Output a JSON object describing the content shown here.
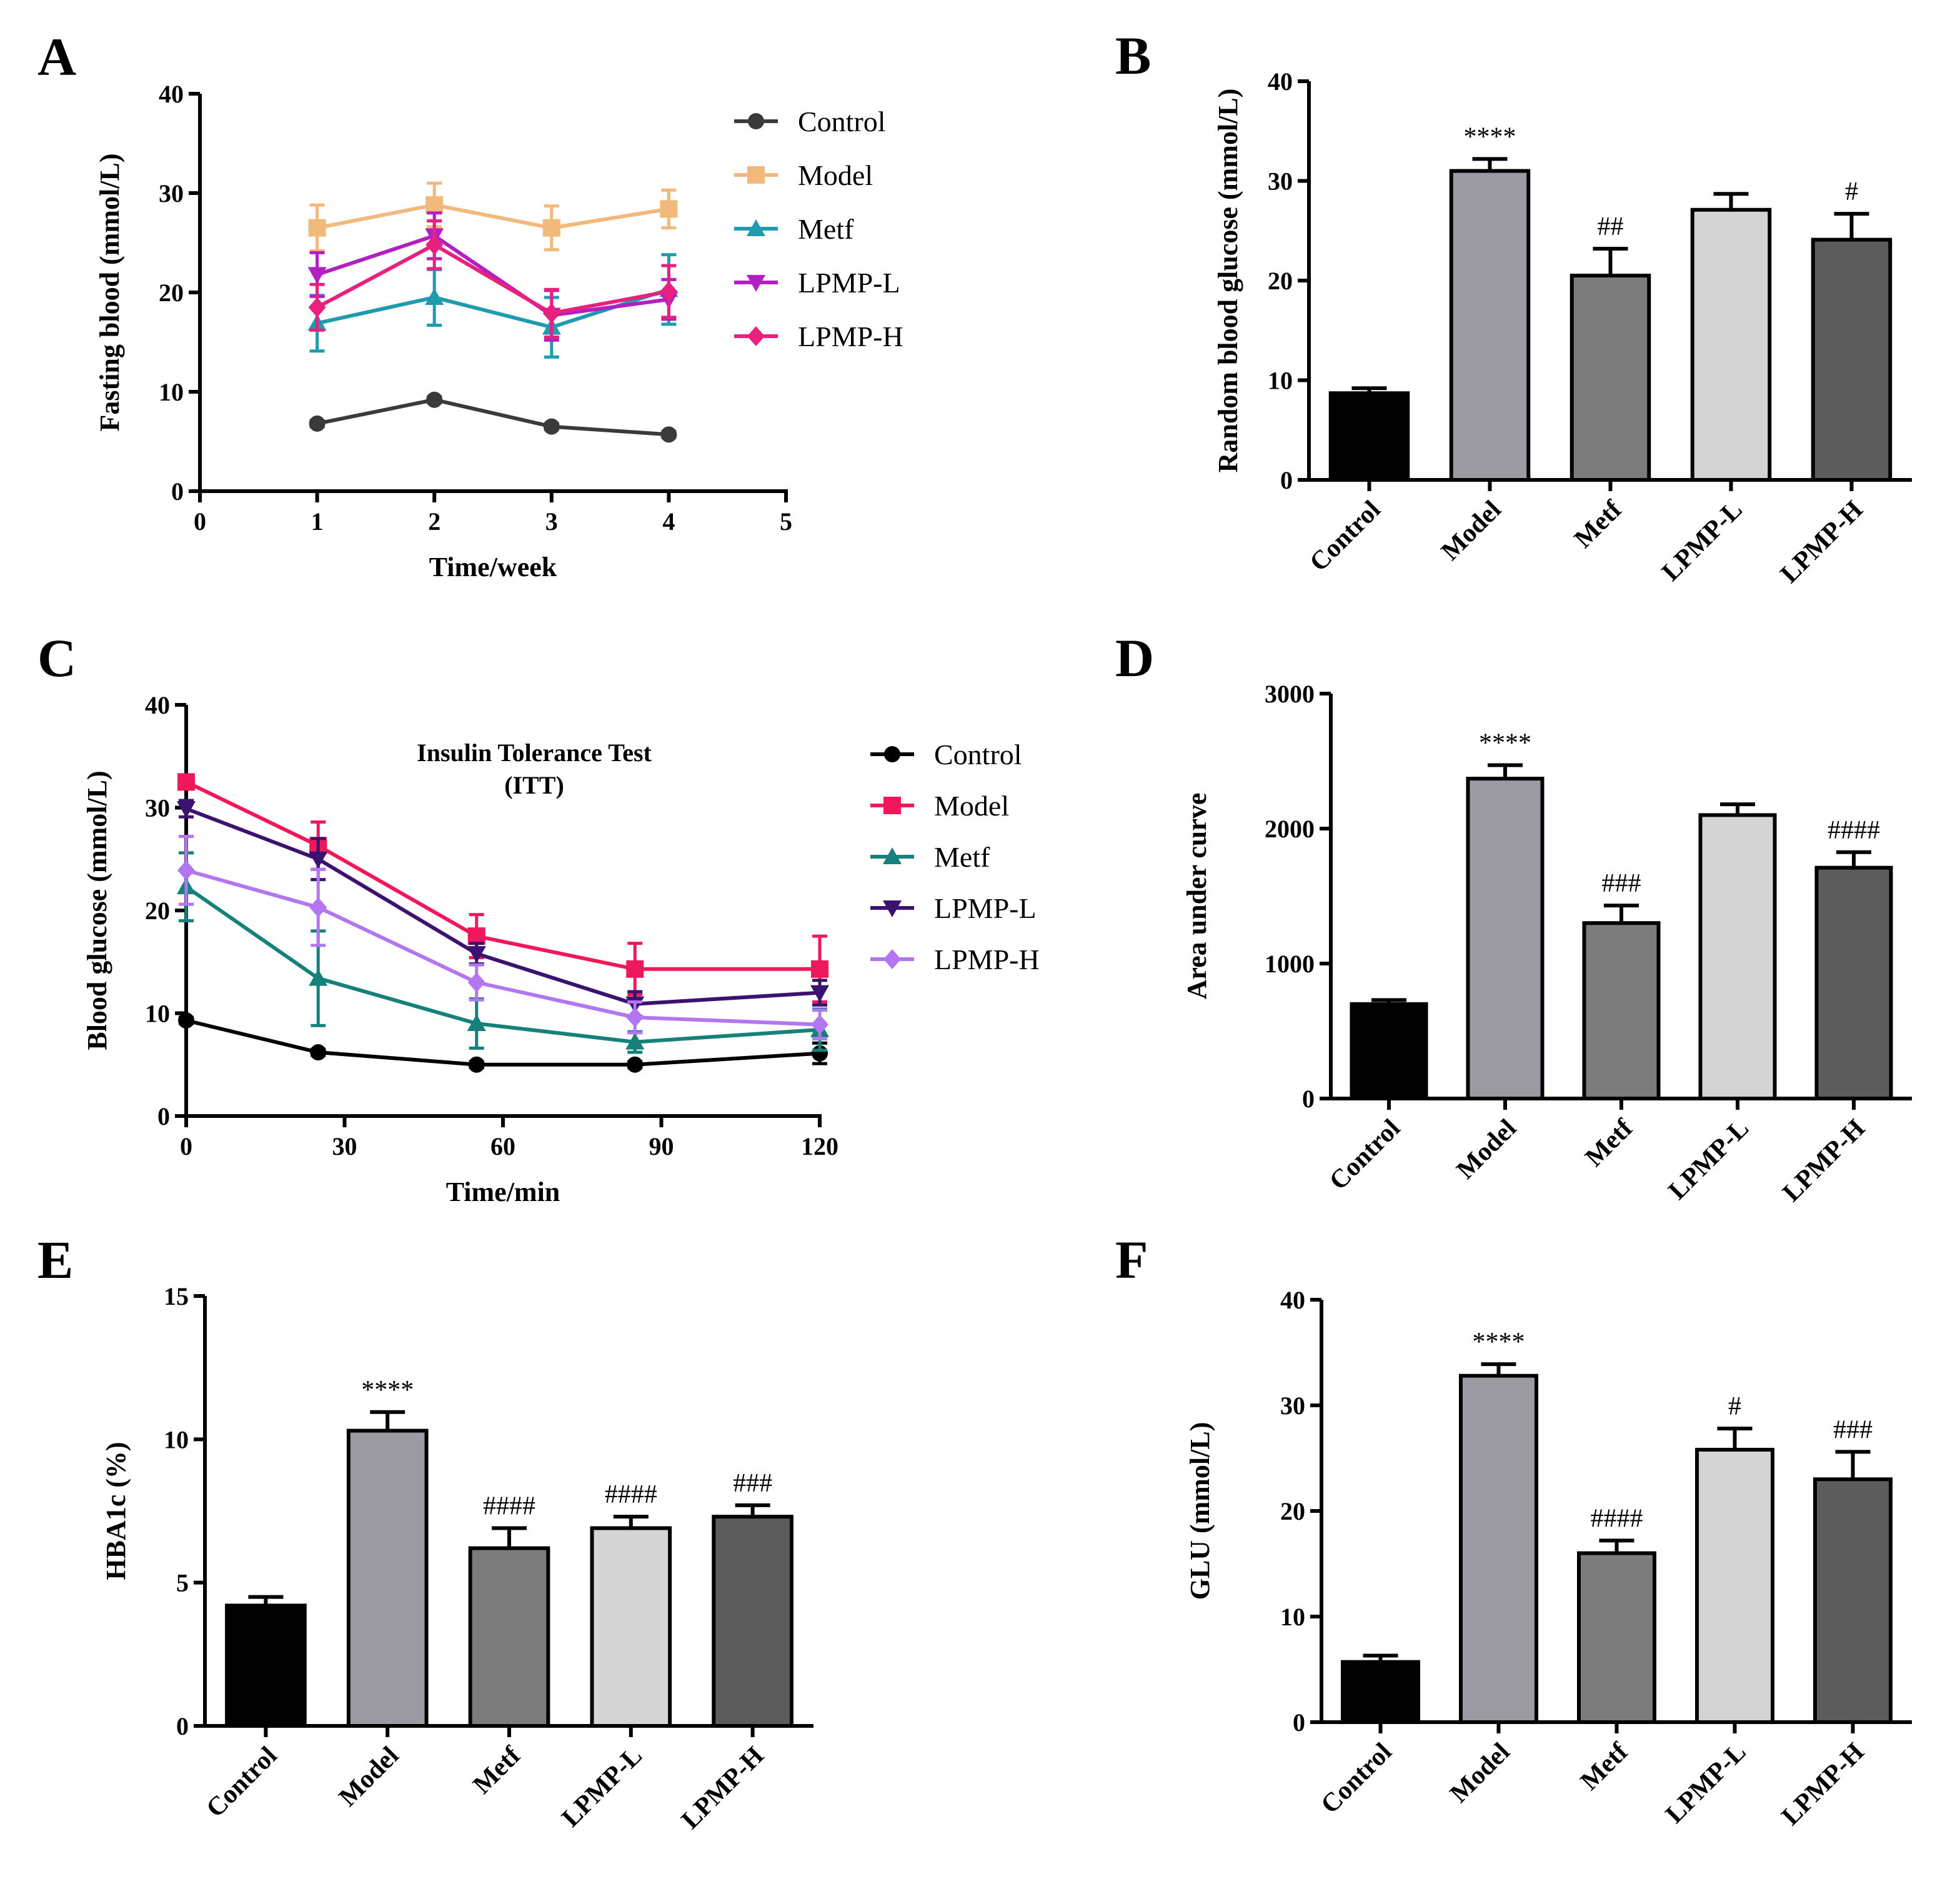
{
  "colors": {
    "Control": "#3a3a3a",
    "Model_A": "#f2b97c",
    "Metf_A": "#1f9bb0",
    "LPMP-L_A": "#b21fc2",
    "LPMP-H_A": "#e8207e",
    "Control_C": "#000000",
    "Model_C": "#f0175a",
    "Metf_C": "#16807a",
    "LPMP-L_C": "#3b1270",
    "LPMP-H_C": "#b277f0",
    "bar_Control": "#000000",
    "bar_Model": "#9b9ba1",
    "bar_Metf": "#7c7c7c",
    "bar_LPMP-L": "#d4d4d4",
    "bar_LPMP-H": "#5c5c5c"
  },
  "chart_data": [
    {
      "panel": "A",
      "type": "line",
      "title": "",
      "xlabel": "Time/week",
      "ylabel": "Fasting blood (mmol/L)",
      "xlim": [
        0,
        5
      ],
      "ylim": [
        0,
        40
      ],
      "xticks": [
        "0",
        "1",
        "2",
        "3",
        "4",
        "5"
      ],
      "yticks": [
        "0",
        "10",
        "20",
        "30",
        "40"
      ],
      "x": [
        1,
        2,
        3,
        4
      ],
      "legend_position": "right",
      "series": [
        {
          "name": "Control",
          "marker": "circle",
          "values": [
            6.8,
            9.2,
            6.5,
            5.7
          ],
          "errors": [
            0.3,
            0.3,
            0.3,
            0.3
          ]
        },
        {
          "name": "Model",
          "marker": "square",
          "values": [
            26.5,
            28.8,
            26.5,
            28.4
          ],
          "errors": [
            2.3,
            2.2,
            2.2,
            1.9
          ]
        },
        {
          "name": "Metf",
          "marker": "triangle-up",
          "values": [
            16.9,
            19.5,
            16.5,
            20.3
          ],
          "errors": [
            2.8,
            2.8,
            3.0,
            3.5
          ]
        },
        {
          "name": "LPMP-L",
          "marker": "triangle-down",
          "values": [
            21.8,
            25.7,
            17.7,
            19.3
          ],
          "errors": [
            2.2,
            2.3,
            2.5,
            2.0
          ]
        },
        {
          "name": "LPMP-H",
          "marker": "diamond",
          "values": [
            18.5,
            24.8,
            17.9,
            20.1
          ],
          "errors": [
            2.3,
            2.4,
            2.4,
            2.6
          ]
        }
      ]
    },
    {
      "panel": "B",
      "type": "bar",
      "title": "",
      "xlabel": "",
      "ylabel": "Random blood glucose (mmol/L)",
      "ylim": [
        0,
        40
      ],
      "yticks": [
        "0",
        "10",
        "20",
        "30",
        "40"
      ],
      "categories": [
        "Control",
        "Model",
        "Metf",
        "LPMP-L",
        "LPMP-H"
      ],
      "values": [
        8.7,
        31.0,
        20.5,
        27.1,
        24.1
      ],
      "errors": [
        0.5,
        1.2,
        2.7,
        1.6,
        2.6
      ],
      "annotations": [
        "",
        "****",
        "##",
        "",
        "#"
      ]
    },
    {
      "panel": "C",
      "type": "line",
      "title": "Insulin Tolerance Test",
      "subtitle": "(ITT)",
      "xlabel": "Time/min",
      "ylabel": "Blood glucose (mmol/L)",
      "xlim": [
        0,
        120
      ],
      "ylim": [
        0,
        40
      ],
      "xticks": [
        "0",
        "30",
        "60",
        "90",
        "120"
      ],
      "yticks": [
        "0",
        "10",
        "20",
        "30",
        "40"
      ],
      "x": [
        0,
        25,
        55,
        85,
        120
      ],
      "legend_position": "right",
      "series": [
        {
          "name": "Control",
          "marker": "circle",
          "values": [
            9.3,
            6.2,
            5.0,
            5.0,
            6.1
          ],
          "errors": [
            0.3,
            0.3,
            0.3,
            0.3,
            1.0
          ]
        },
        {
          "name": "Model",
          "marker": "square",
          "values": [
            32.5,
            26.3,
            17.5,
            14.3,
            14.3
          ],
          "errors": [
            0.6,
            2.3,
            2.1,
            2.5,
            3.2
          ]
        },
        {
          "name": "Metf",
          "marker": "triangle-up",
          "values": [
            22.3,
            13.4,
            9.0,
            7.2,
            8.4
          ],
          "errors": [
            3.3,
            4.6,
            2.4,
            1.0,
            2.0
          ]
        },
        {
          "name": "LPMP-L",
          "marker": "triangle-down",
          "values": [
            29.9,
            25.0,
            15.8,
            10.9,
            12.0
          ],
          "errors": [
            0.8,
            2.0,
            1.0,
            1.2,
            1.2
          ]
        },
        {
          "name": "LPMP-H",
          "marker": "diamond",
          "values": [
            23.9,
            20.3,
            13.0,
            9.6,
            8.9
          ],
          "errors": [
            3.3,
            3.7,
            1.7,
            1.5,
            1.4
          ]
        }
      ]
    },
    {
      "panel": "D",
      "type": "bar",
      "title": "",
      "xlabel": "",
      "ylabel": "Area under curve",
      "ylim": [
        0,
        3000
      ],
      "yticks": [
        "0",
        "1000",
        "2000",
        "3000"
      ],
      "categories": [
        "Control",
        "Model",
        "Metf",
        "LPMP-L",
        "LPMP-H"
      ],
      "values": [
        700,
        2370,
        1300,
        2100,
        1710
      ],
      "errors": [
        30,
        100,
        130,
        80,
        115
      ],
      "annotations": [
        "",
        "****",
        "###",
        "",
        "####"
      ]
    },
    {
      "panel": "E",
      "type": "bar",
      "title": "",
      "xlabel": "",
      "ylabel": "HBA1c (%)",
      "ylim": [
        0,
        15
      ],
      "yticks": [
        "0",
        "5",
        "10",
        "15"
      ],
      "categories": [
        "Control",
        "Model",
        "Metf",
        "LPMP-L",
        "LPMP-H"
      ],
      "values": [
        4.2,
        10.3,
        6.2,
        6.9,
        7.3
      ],
      "errors": [
        0.3,
        0.65,
        0.7,
        0.4,
        0.4
      ],
      "annotations": [
        "",
        "****",
        "####",
        "####",
        "###"
      ]
    },
    {
      "panel": "F",
      "type": "bar",
      "title": "",
      "xlabel": "",
      "ylabel": "GLU (mmol/L)",
      "ylim": [
        0,
        40
      ],
      "yticks": [
        "0",
        "10",
        "20",
        "30",
        "40"
      ],
      "categories": [
        "Control",
        "Model",
        "Metf",
        "LPMP-L",
        "LPMP-H"
      ],
      "values": [
        5.7,
        32.8,
        16.0,
        25.8,
        23.0
      ],
      "errors": [
        0.6,
        1.1,
        1.2,
        2.0,
        2.6
      ],
      "annotations": [
        "",
        "****",
        "####",
        "#",
        "###"
      ]
    }
  ]
}
